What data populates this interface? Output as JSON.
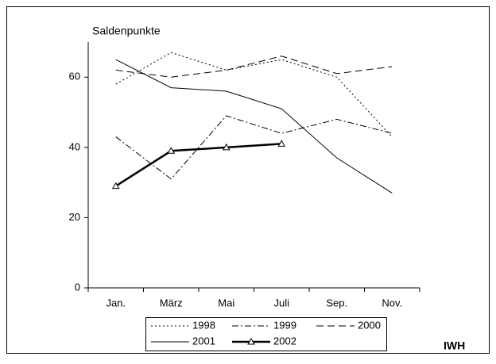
{
  "chart_data": {
    "type": "line",
    "y_label": "Saldenpunkte",
    "categories": [
      "Jan.",
      "März",
      "Mai",
      "Juli",
      "Sep.",
      "Nov."
    ],
    "series": [
      {
        "name": "1998",
        "color": "#000000",
        "line_style": "dotted",
        "values": [
          58,
          67,
          62,
          65,
          60,
          43
        ]
      },
      {
        "name": "1999",
        "color": "#000000",
        "line_style": "dashdot",
        "values": [
          43,
          31,
          49,
          44,
          48,
          44
        ]
      },
      {
        "name": "2000",
        "color": "#000000",
        "line_style": "dashed",
        "values": [
          62,
          60,
          62,
          66,
          61,
          63
        ]
      },
      {
        "name": "2001",
        "color": "#000000",
        "line_style": "solid",
        "values": [
          65,
          57,
          56,
          51,
          37,
          27
        ]
      },
      {
        "name": "2002",
        "color": "#000000",
        "line_style": "thick-triangle",
        "values": [
          29,
          39,
          40,
          41,
          null,
          null
        ]
      }
    ],
    "ylim": [
      0,
      70
    ],
    "yticks": [
      0,
      20,
      40,
      60
    ],
    "source": "IWH"
  }
}
